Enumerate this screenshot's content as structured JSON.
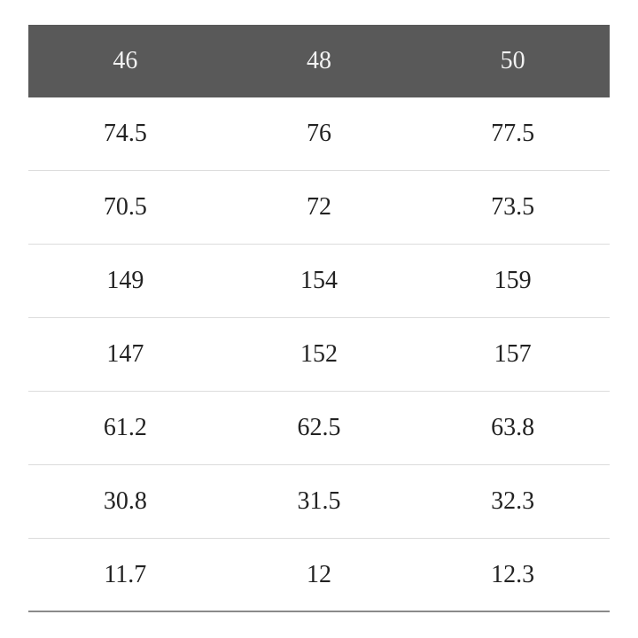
{
  "table": {
    "header": [
      "46",
      "48",
      "50"
    ],
    "rows": [
      [
        "74.5",
        "76",
        "77.5"
      ],
      [
        "70.5",
        "72",
        "73.5"
      ],
      [
        "149",
        "154",
        "159"
      ],
      [
        "147",
        "152",
        "157"
      ],
      [
        "61.2",
        "62.5",
        "63.8"
      ],
      [
        "30.8",
        "31.5",
        "32.3"
      ],
      [
        "11.7",
        "12",
        "12.3"
      ]
    ]
  }
}
